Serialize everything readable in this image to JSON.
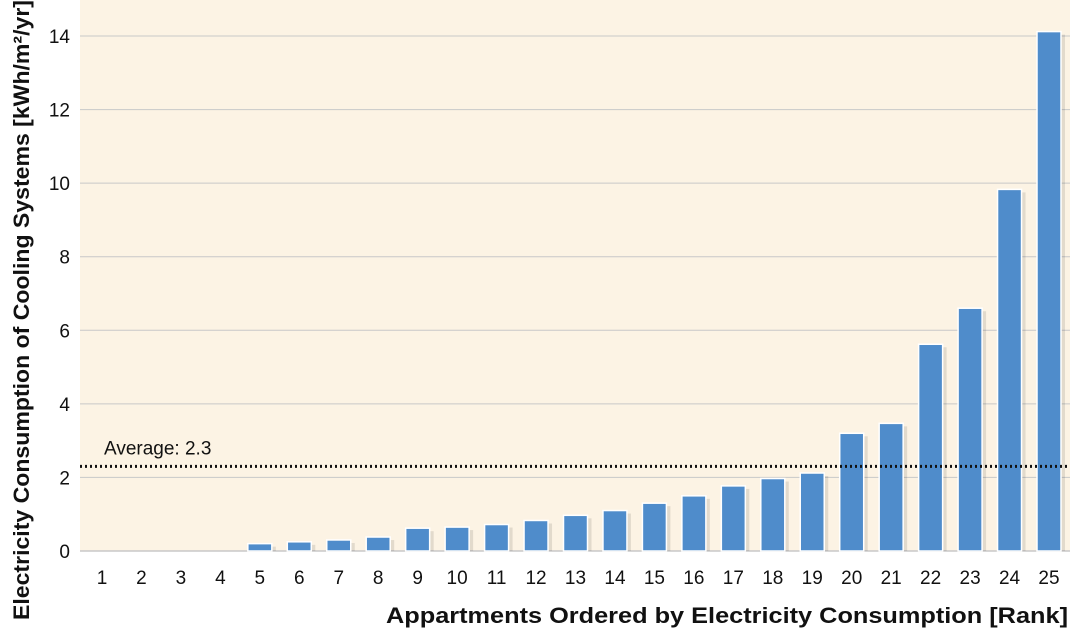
{
  "chart_data": {
    "type": "bar",
    "categories": [
      "1",
      "2",
      "3",
      "4",
      "5",
      "6",
      "7",
      "8",
      "9",
      "10",
      "11",
      "12",
      "13",
      "14",
      "15",
      "16",
      "17",
      "18",
      "19",
      "20",
      "21",
      "22",
      "23",
      "24",
      "25"
    ],
    "values": [
      0,
      0,
      0,
      0,
      0.2,
      0.25,
      0.3,
      0.38,
      0.62,
      0.65,
      0.72,
      0.83,
      0.97,
      1.1,
      1.3,
      1.5,
      1.77,
      1.97,
      2.12,
      3.2,
      3.47,
      5.62,
      6.6,
      9.83,
      14.12
    ],
    "xlabel": "Appartments Ordered by Electricity Consumption [Rank]",
    "ylabel": "Electricity Consumption of Cooling Systems [kWh/m²/yr]",
    "ylim": [
      0,
      15
    ],
    "yticks": [
      0,
      2,
      4,
      6,
      8,
      10,
      12,
      14
    ],
    "grid": true,
    "average": {
      "value": 2.3,
      "label": "Average: 2.3"
    },
    "colors": {
      "bar": "#4f8ccb",
      "plot_background": "#fcf3e4",
      "grid": "#c8c8c8",
      "average_line": "#111111"
    }
  }
}
